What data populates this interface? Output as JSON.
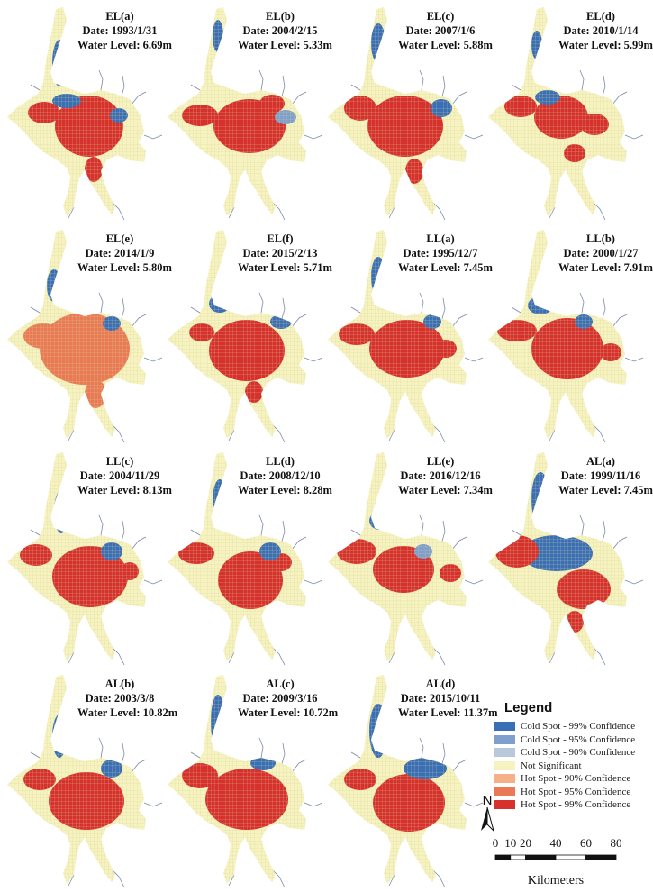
{
  "colors": {
    "cold99": "#3a6fb5",
    "cold95": "#7f9fcc",
    "cold90": "#b8c9dc",
    "ns": "#f6f3c0",
    "hot90": "#f5b088",
    "hot95": "#ea7a55",
    "hot99": "#d6312d",
    "river": "#7a8aa8"
  },
  "panels": [
    {
      "label": "EL(a)",
      "date": "Date: 1993/1/31",
      "level": "Water Level: 6.69m",
      "pattern": "el-a"
    },
    {
      "label": "EL(b)",
      "date": "Date: 2004/2/15",
      "level": "Water Level: 5.33m",
      "pattern": "el-b"
    },
    {
      "label": "EL(c)",
      "date": "Date: 2007/1/6",
      "level": "Water Level: 5.88m",
      "pattern": "el-c"
    },
    {
      "label": "EL(d)",
      "date": "Date: 2010/1/14",
      "level": "Water Level: 5.99m",
      "pattern": "el-d"
    },
    {
      "label": "EL(e)",
      "date": "Date: 2014/1/9",
      "level": "Water Level: 5.80m",
      "pattern": "el-e"
    },
    {
      "label": "EL(f)",
      "date": "Date: 2015/2/13",
      "level": "Water Level: 5.71m",
      "pattern": "el-f"
    },
    {
      "label": "LL(a)",
      "date": "Date: 1995/12/7",
      "level": "Water Level: 7.45m",
      "pattern": "ll-a"
    },
    {
      "label": "LL(b)",
      "date": "Date: 2000/1/27",
      "level": "Water Level: 7.91m",
      "pattern": "ll-b"
    },
    {
      "label": "LL(c)",
      "date": "Date: 2004/11/29",
      "level": "Water Level: 8.13m",
      "pattern": "ll-c"
    },
    {
      "label": "LL(d)",
      "date": "Date: 2008/12/10",
      "level": "Water Level: 8.28m",
      "pattern": "ll-d"
    },
    {
      "label": "LL(e)",
      "date": "Date: 2016/12/16",
      "level": "Water Level: 7.34m",
      "pattern": "ll-e"
    },
    {
      "label": "AL(a)",
      "date": "Date: 1999/11/16",
      "level": "Water Level: 7.45m",
      "pattern": "al-a"
    },
    {
      "label": "AL(b)",
      "date": "Date: 2003/3/8",
      "level": "Water Level: 10.82m",
      "pattern": "al-b"
    },
    {
      "label": "AL(c)",
      "date": "Date: 2009/3/16",
      "level": "Water Level: 10.72m",
      "pattern": "al-c"
    },
    {
      "label": "AL(d)",
      "date": "Date: 2015/10/11",
      "level": "Water Level: 11.37m",
      "pattern": "al-d"
    }
  ],
  "legend": {
    "title": "Legend",
    "items": [
      {
        "label": "Cold Spot - 99% Confidence",
        "color": "#3a6fb5"
      },
      {
        "label": "Cold Spot - 95% Confidence",
        "color": "#7f9fcc"
      },
      {
        "label": "Cold Spot - 90% Confidence",
        "color": "#b8c9dc"
      },
      {
        "label": "Not Significant",
        "color": "#f6f3c0"
      },
      {
        "label": "Hot Spot - 90% Confidence",
        "color": "#f5b088"
      },
      {
        "label": "Hot Spot - 95% Confidence",
        "color": "#ea7a55"
      },
      {
        "label": "Hot Spot - 99% Confidence",
        "color": "#d6312d"
      }
    ]
  },
  "north_arrow": {
    "label": "N"
  },
  "scale_bar": {
    "ticks": [
      "0",
      "10",
      "20",
      "40",
      "60",
      "80"
    ],
    "tick_values": [
      0,
      10,
      20,
      40,
      60,
      80
    ],
    "max": 80,
    "units": "Kilometers"
  }
}
